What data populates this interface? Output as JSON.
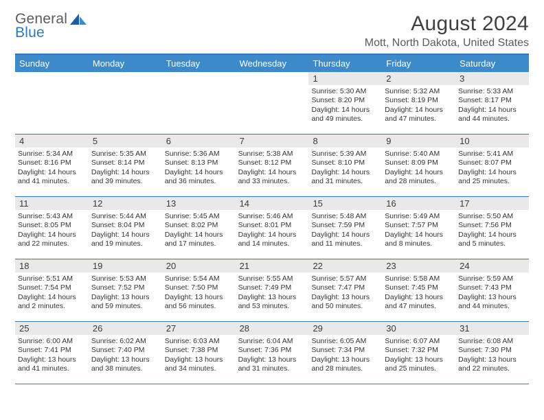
{
  "brand": {
    "line1": "General",
    "line2": "Blue"
  },
  "title": "August 2024",
  "location": "Mott, North Dakota, United States",
  "colors": {
    "header_bg": "#3c8ac9",
    "border": "#2f77b8",
    "daynum_bg": "#e9e9e9",
    "text": "#333333",
    "title": "#404040"
  },
  "day_headers": [
    "Sunday",
    "Monday",
    "Tuesday",
    "Wednesday",
    "Thursday",
    "Friday",
    "Saturday"
  ],
  "weeks": [
    [
      {
        "num": "",
        "sunrise": "",
        "sunset": "",
        "daylight1": "",
        "daylight2": "",
        "empty": true
      },
      {
        "num": "",
        "sunrise": "",
        "sunset": "",
        "daylight1": "",
        "daylight2": "",
        "empty": true
      },
      {
        "num": "",
        "sunrise": "",
        "sunset": "",
        "daylight1": "",
        "daylight2": "",
        "empty": true
      },
      {
        "num": "",
        "sunrise": "",
        "sunset": "",
        "daylight1": "",
        "daylight2": "",
        "empty": true
      },
      {
        "num": "1",
        "sunrise": "Sunrise: 5:30 AM",
        "sunset": "Sunset: 8:20 PM",
        "daylight1": "Daylight: 14 hours",
        "daylight2": "and 49 minutes."
      },
      {
        "num": "2",
        "sunrise": "Sunrise: 5:32 AM",
        "sunset": "Sunset: 8:19 PM",
        "daylight1": "Daylight: 14 hours",
        "daylight2": "and 47 minutes."
      },
      {
        "num": "3",
        "sunrise": "Sunrise: 5:33 AM",
        "sunset": "Sunset: 8:17 PM",
        "daylight1": "Daylight: 14 hours",
        "daylight2": "and 44 minutes."
      }
    ],
    [
      {
        "num": "4",
        "sunrise": "Sunrise: 5:34 AM",
        "sunset": "Sunset: 8:16 PM",
        "daylight1": "Daylight: 14 hours",
        "daylight2": "and 41 minutes."
      },
      {
        "num": "5",
        "sunrise": "Sunrise: 5:35 AM",
        "sunset": "Sunset: 8:14 PM",
        "daylight1": "Daylight: 14 hours",
        "daylight2": "and 39 minutes."
      },
      {
        "num": "6",
        "sunrise": "Sunrise: 5:36 AM",
        "sunset": "Sunset: 8:13 PM",
        "daylight1": "Daylight: 14 hours",
        "daylight2": "and 36 minutes."
      },
      {
        "num": "7",
        "sunrise": "Sunrise: 5:38 AM",
        "sunset": "Sunset: 8:12 PM",
        "daylight1": "Daylight: 14 hours",
        "daylight2": "and 33 minutes."
      },
      {
        "num": "8",
        "sunrise": "Sunrise: 5:39 AM",
        "sunset": "Sunset: 8:10 PM",
        "daylight1": "Daylight: 14 hours",
        "daylight2": "and 31 minutes."
      },
      {
        "num": "9",
        "sunrise": "Sunrise: 5:40 AM",
        "sunset": "Sunset: 8:09 PM",
        "daylight1": "Daylight: 14 hours",
        "daylight2": "and 28 minutes."
      },
      {
        "num": "10",
        "sunrise": "Sunrise: 5:41 AM",
        "sunset": "Sunset: 8:07 PM",
        "daylight1": "Daylight: 14 hours",
        "daylight2": "and 25 minutes."
      }
    ],
    [
      {
        "num": "11",
        "sunrise": "Sunrise: 5:43 AM",
        "sunset": "Sunset: 8:05 PM",
        "daylight1": "Daylight: 14 hours",
        "daylight2": "and 22 minutes."
      },
      {
        "num": "12",
        "sunrise": "Sunrise: 5:44 AM",
        "sunset": "Sunset: 8:04 PM",
        "daylight1": "Daylight: 14 hours",
        "daylight2": "and 19 minutes."
      },
      {
        "num": "13",
        "sunrise": "Sunrise: 5:45 AM",
        "sunset": "Sunset: 8:02 PM",
        "daylight1": "Daylight: 14 hours",
        "daylight2": "and 17 minutes."
      },
      {
        "num": "14",
        "sunrise": "Sunrise: 5:46 AM",
        "sunset": "Sunset: 8:01 PM",
        "daylight1": "Daylight: 14 hours",
        "daylight2": "and 14 minutes."
      },
      {
        "num": "15",
        "sunrise": "Sunrise: 5:48 AM",
        "sunset": "Sunset: 7:59 PM",
        "daylight1": "Daylight: 14 hours",
        "daylight2": "and 11 minutes."
      },
      {
        "num": "16",
        "sunrise": "Sunrise: 5:49 AM",
        "sunset": "Sunset: 7:57 PM",
        "daylight1": "Daylight: 14 hours",
        "daylight2": "and 8 minutes."
      },
      {
        "num": "17",
        "sunrise": "Sunrise: 5:50 AM",
        "sunset": "Sunset: 7:56 PM",
        "daylight1": "Daylight: 14 hours",
        "daylight2": "and 5 minutes."
      }
    ],
    [
      {
        "num": "18",
        "sunrise": "Sunrise: 5:51 AM",
        "sunset": "Sunset: 7:54 PM",
        "daylight1": "Daylight: 14 hours",
        "daylight2": "and 2 minutes."
      },
      {
        "num": "19",
        "sunrise": "Sunrise: 5:53 AM",
        "sunset": "Sunset: 7:52 PM",
        "daylight1": "Daylight: 13 hours",
        "daylight2": "and 59 minutes."
      },
      {
        "num": "20",
        "sunrise": "Sunrise: 5:54 AM",
        "sunset": "Sunset: 7:50 PM",
        "daylight1": "Daylight: 13 hours",
        "daylight2": "and 56 minutes."
      },
      {
        "num": "21",
        "sunrise": "Sunrise: 5:55 AM",
        "sunset": "Sunset: 7:49 PM",
        "daylight1": "Daylight: 13 hours",
        "daylight2": "and 53 minutes."
      },
      {
        "num": "22",
        "sunrise": "Sunrise: 5:57 AM",
        "sunset": "Sunset: 7:47 PM",
        "daylight1": "Daylight: 13 hours",
        "daylight2": "and 50 minutes."
      },
      {
        "num": "23",
        "sunrise": "Sunrise: 5:58 AM",
        "sunset": "Sunset: 7:45 PM",
        "daylight1": "Daylight: 13 hours",
        "daylight2": "and 47 minutes."
      },
      {
        "num": "24",
        "sunrise": "Sunrise: 5:59 AM",
        "sunset": "Sunset: 7:43 PM",
        "daylight1": "Daylight: 13 hours",
        "daylight2": "and 44 minutes."
      }
    ],
    [
      {
        "num": "25",
        "sunrise": "Sunrise: 6:00 AM",
        "sunset": "Sunset: 7:41 PM",
        "daylight1": "Daylight: 13 hours",
        "daylight2": "and 41 minutes."
      },
      {
        "num": "26",
        "sunrise": "Sunrise: 6:02 AM",
        "sunset": "Sunset: 7:40 PM",
        "daylight1": "Daylight: 13 hours",
        "daylight2": "and 38 minutes."
      },
      {
        "num": "27",
        "sunrise": "Sunrise: 6:03 AM",
        "sunset": "Sunset: 7:38 PM",
        "daylight1": "Daylight: 13 hours",
        "daylight2": "and 34 minutes."
      },
      {
        "num": "28",
        "sunrise": "Sunrise: 6:04 AM",
        "sunset": "Sunset: 7:36 PM",
        "daylight1": "Daylight: 13 hours",
        "daylight2": "and 31 minutes."
      },
      {
        "num": "29",
        "sunrise": "Sunrise: 6:05 AM",
        "sunset": "Sunset: 7:34 PM",
        "daylight1": "Daylight: 13 hours",
        "daylight2": "and 28 minutes."
      },
      {
        "num": "30",
        "sunrise": "Sunrise: 6:07 AM",
        "sunset": "Sunset: 7:32 PM",
        "daylight1": "Daylight: 13 hours",
        "daylight2": "and 25 minutes."
      },
      {
        "num": "31",
        "sunrise": "Sunrise: 6:08 AM",
        "sunset": "Sunset: 7:30 PM",
        "daylight1": "Daylight: 13 hours",
        "daylight2": "and 22 minutes."
      }
    ]
  ]
}
